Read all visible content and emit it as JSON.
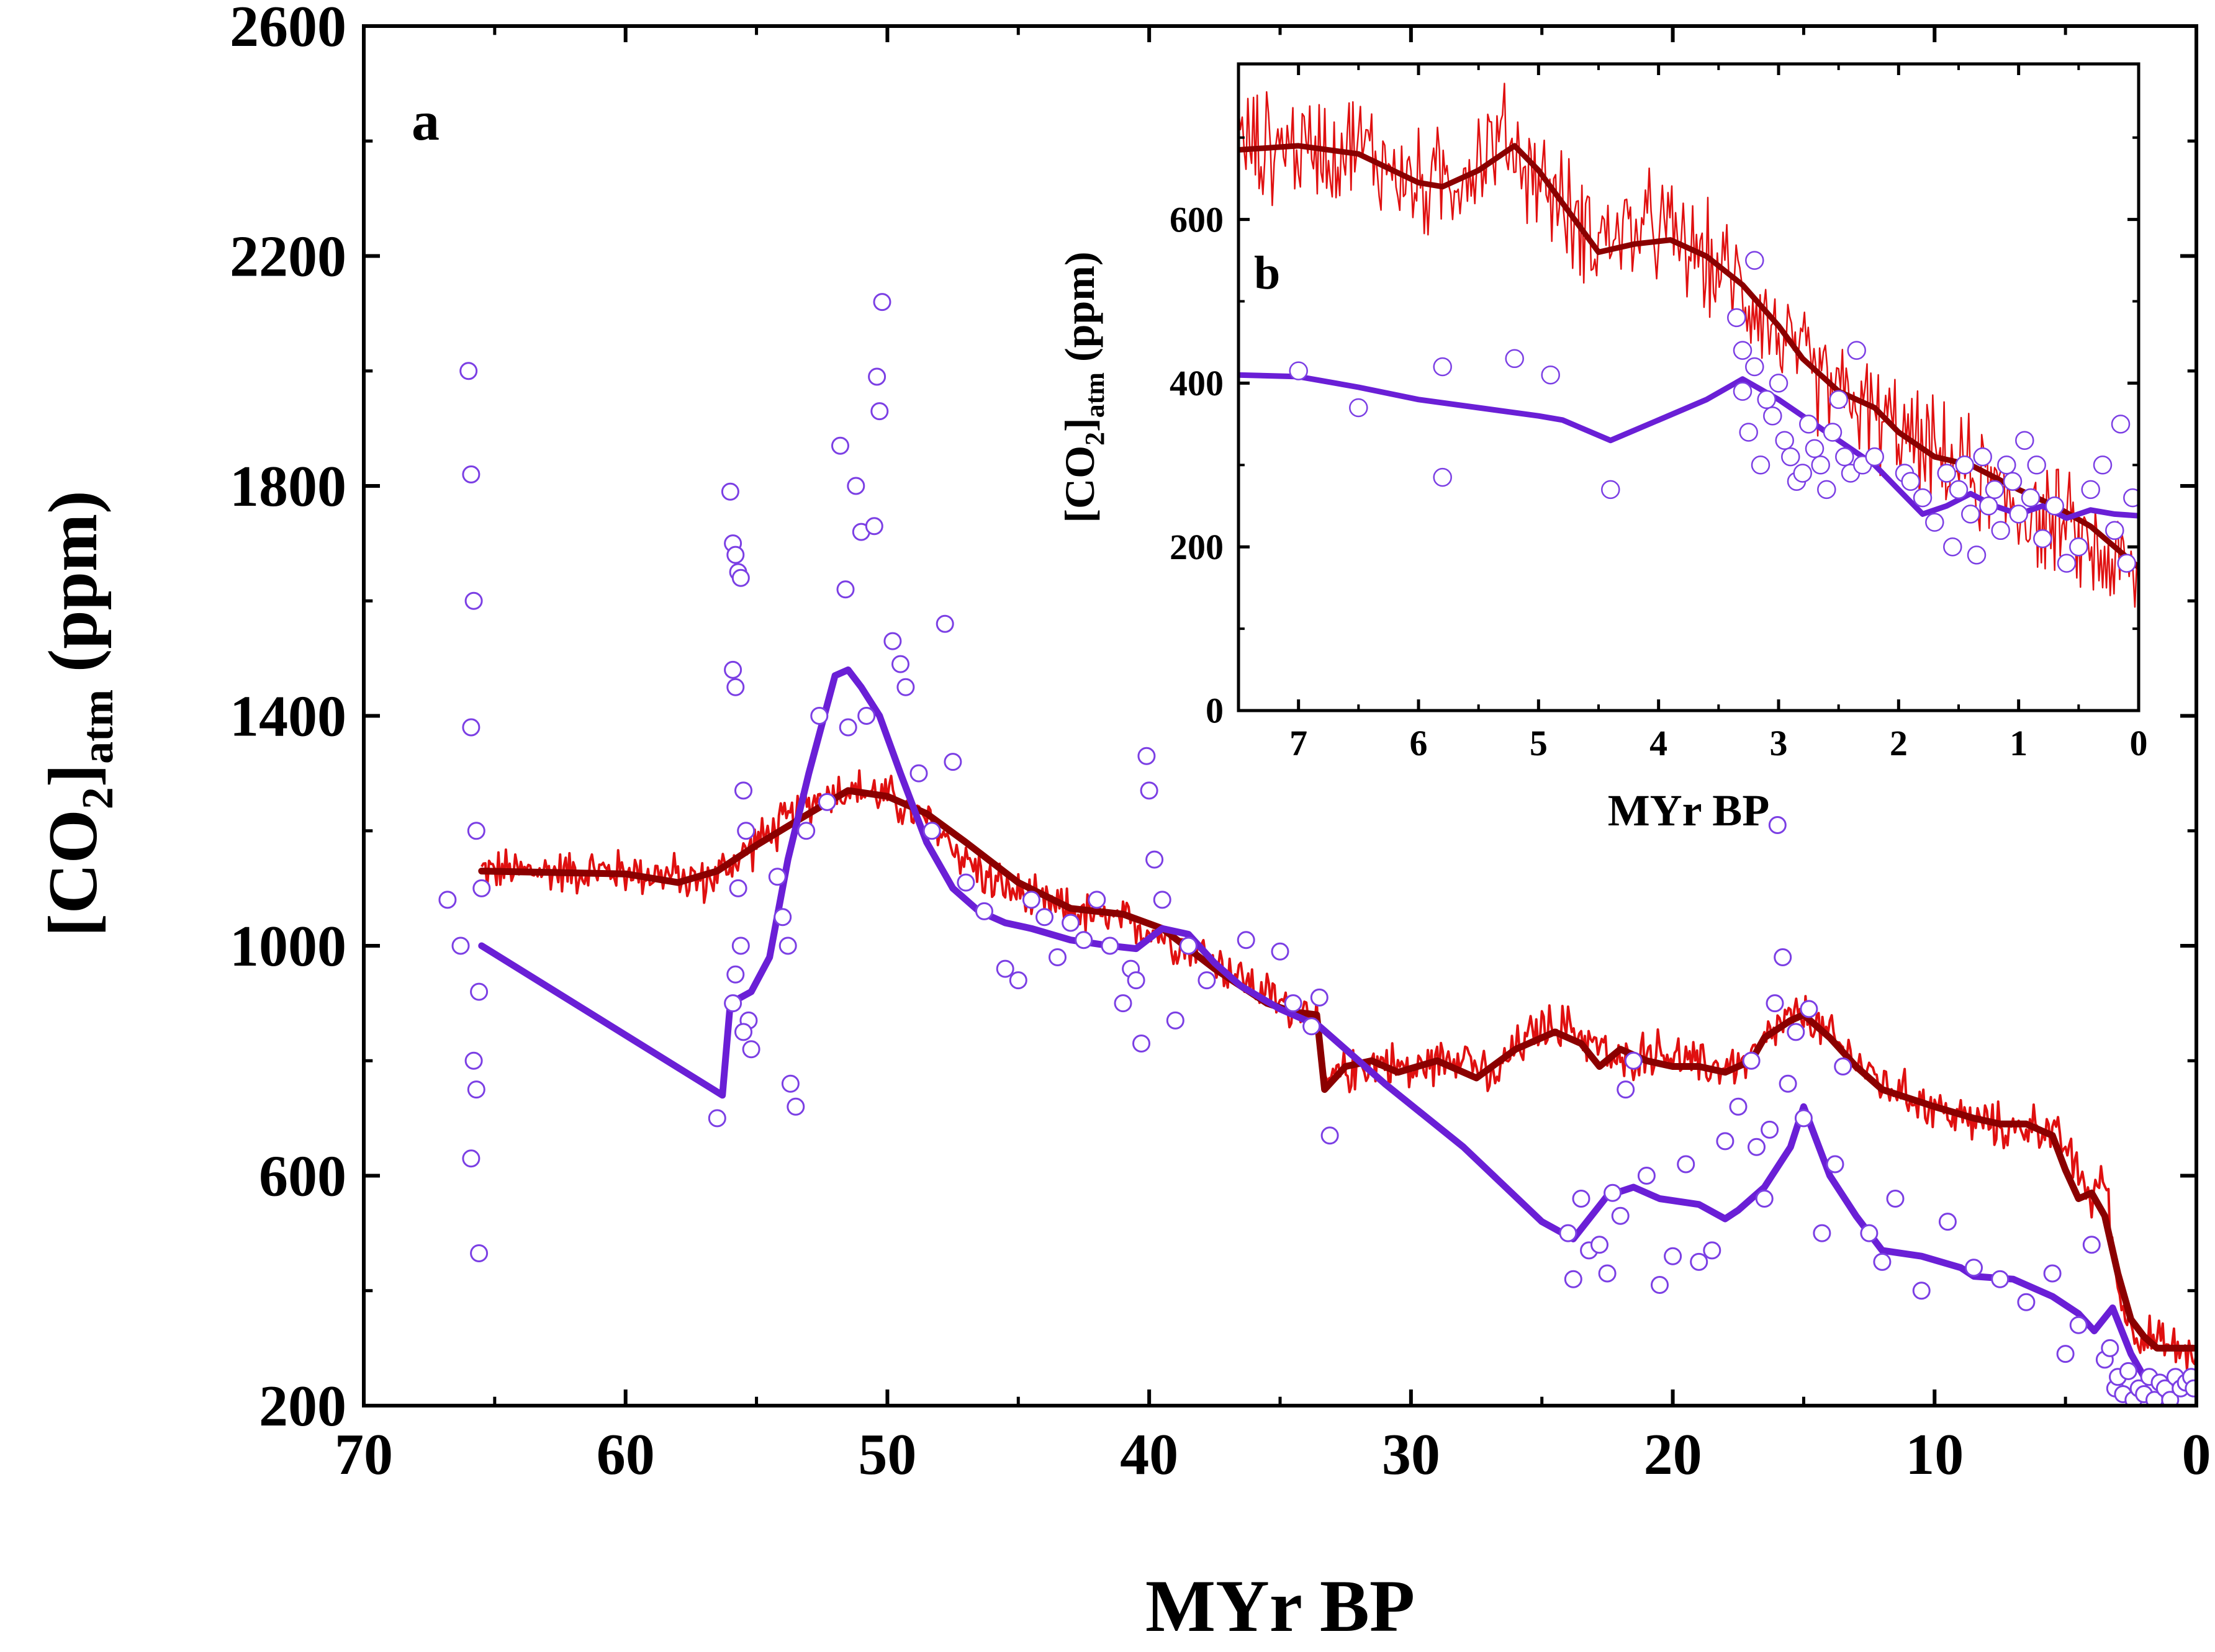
{
  "chart_data": [
    {
      "id": "main",
      "type": "line",
      "panel_label": "a",
      "xlabel": "MYr BP",
      "ylabel_parts": {
        "bracket_open": "[CO",
        "sub1": "2",
        "bracket_close": "]",
        "sub2": "atm",
        "unit": " (ppm)"
      },
      "xlim": [
        70,
        0
      ],
      "ylim": [
        200,
        2600
      ],
      "xticks": [
        70,
        60,
        50,
        40,
        30,
        20,
        10,
        0
      ],
      "yticks": [
        200,
        600,
        1000,
        1400,
        1800,
        2200,
        2600
      ],
      "series": [
        {
          "name": "model purple line",
          "color": "#6a1fd6",
          "style": "line",
          "x": [
            65.5,
            56.3,
            56.0,
            55.2,
            54.5,
            53.8,
            53.0,
            52.0,
            51.5,
            51.0,
            50.3,
            49.5,
            48.5,
            47.5,
            46.5,
            45.5,
            44.5,
            43.0,
            41.5,
            40.5,
            39.5,
            38.5,
            37.5,
            36.5,
            35.0,
            33.5,
            31.0,
            28.0,
            25.0,
            23.8,
            22.5,
            21.5,
            20.5,
            19.0,
            18.0,
            17.5,
            16.5,
            15.5,
            15.0,
            14.5,
            14.0,
            13.0,
            12.0,
            10.5,
            9.0,
            8.5,
            7.0,
            5.5,
            4.5,
            3.9,
            3.2,
            2.5,
            2.0,
            1.5,
            1.0,
            0.5,
            0.1
          ],
          "y": [
            1000,
            740,
            900,
            920,
            980,
            1150,
            1300,
            1470,
            1480,
            1450,
            1400,
            1300,
            1180,
            1100,
            1060,
            1040,
            1030,
            1010,
            1000,
            995,
            1030,
            1020,
            970,
            930,
            890,
            860,
            760,
            650,
            520,
            490,
            565,
            580,
            560,
            550,
            525,
            540,
            580,
            650,
            720,
            660,
            600,
            530,
            470,
            460,
            440,
            425,
            420,
            390,
            360,
            330,
            370,
            290,
            250,
            240,
            245,
            250,
            250
          ]
        },
        {
          "name": "reconstruction red fluctuating",
          "color": "#e01010",
          "style": "noisy-line",
          "x": [
            65.5,
            64.0,
            62.0,
            60.0,
            58.0,
            57.0,
            56.0,
            55.0,
            54.0,
            53.0,
            52.0,
            51.0,
            50.0,
            49.0,
            48.0,
            47.0,
            46.0,
            45.0,
            44.0,
            43.0,
            42.0,
            41.0,
            40.0,
            39.0,
            38.0,
            37.0,
            36.0,
            35.0,
            34.0,
            33.6,
            33.4,
            32.0,
            31.0,
            30.0,
            29.0,
            28.0,
            27.0,
            26.0,
            25.0,
            24.0,
            23.0,
            22.0,
            21.0,
            20.0,
            19.0,
            18.0,
            17.0,
            16.0,
            15.0,
            14.0,
            13.0,
            12.0,
            11.0,
            10.0,
            9.0,
            8.0,
            7.0,
            6.0,
            5.0,
            4.0,
            3.5,
            3.0,
            2.5,
            2.0,
            1.0,
            0.0
          ],
          "y": [
            1130,
            1130,
            1130,
            1130,
            1120,
            1110,
            1140,
            1180,
            1210,
            1250,
            1270,
            1270,
            1260,
            1230,
            1200,
            1150,
            1110,
            1090,
            1070,
            1060,
            1050,
            1040,
            1030,
            1010,
            990,
            960,
            930,
            900,
            890,
            880,
            760,
            790,
            800,
            780,
            800,
            820,
            760,
            820,
            860,
            860,
            830,
            790,
            820,
            810,
            790,
            790,
            800,
            860,
            880,
            840,
            800,
            760,
            740,
            720,
            700,
            690,
            680,
            690,
            650,
            560,
            600,
            400,
            340,
            320,
            300,
            290
          ],
          "noise": 35
        },
        {
          "name": "smoothed dark red",
          "color": "#8b0000",
          "style": "line",
          "x": [
            65.5,
            60.0,
            58.0,
            56.5,
            55.0,
            53.0,
            51.5,
            50.0,
            48.5,
            47.0,
            45.0,
            43.0,
            41.0,
            39.5,
            37.5,
            35.5,
            34.5,
            33.6,
            33.3,
            32.5,
            31.5,
            30.5,
            29.0,
            27.5,
            26.0,
            24.5,
            23.5,
            22.8,
            22.0,
            21.0,
            20.0,
            19.0,
            18.0,
            17.0,
            16.5,
            15.5,
            15.0,
            14.0,
            13.0,
            12.0,
            10.0,
            8.5,
            7.5,
            6.5,
            5.5,
            5.0,
            4.5,
            4.0,
            3.5,
            3.0,
            2.5,
            2.0,
            1.5,
            1.0,
            0.5,
            0.1
          ],
          "y": [
            1130,
            1125,
            1110,
            1130,
            1175,
            1230,
            1270,
            1260,
            1230,
            1180,
            1110,
            1065,
            1055,
            1030,
            960,
            900,
            885,
            880,
            750,
            790,
            800,
            780,
            800,
            770,
            820,
            850,
            830,
            790,
            820,
            800,
            790,
            790,
            780,
            800,
            840,
            870,
            880,
            840,
            790,
            750,
            720,
            700,
            690,
            690,
            670,
            610,
            560,
            570,
            530,
            430,
            350,
            320,
            300,
            300,
            300,
            300
          ]
        },
        {
          "name": "proxy data open circles",
          "color": "#7b3fe4",
          "style": "markers",
          "x": [
            66.8,
            66.3,
            66.0,
            65.9,
            65.8,
            65.9,
            65.7,
            65.6,
            65.8,
            65.9,
            65.5,
            65.7,
            65.6,
            56.5,
            56.0,
            55.9,
            55.8,
            55.7,
            55.6,
            55.9,
            55.8,
            55.5,
            55.4,
            55.7,
            55.6,
            55.8,
            55.9,
            55.3,
            55.5,
            55.2,
            54.2,
            54.0,
            53.8,
            53.7,
            53.5,
            53.1,
            52.6,
            52.3,
            51.8,
            51.6,
            51.5,
            51.2,
            51.0,
            50.8,
            50.5,
            50.4,
            50.3,
            50.2,
            49.8,
            49.5,
            49.3,
            48.8,
            48.3,
            47.8,
            47.5,
            47.0,
            46.3,
            45.5,
            45.0,
            44.5,
            44.0,
            43.5,
            43.0,
            42.5,
            42.0,
            41.5,
            41.0,
            40.7,
            40.5,
            40.3,
            40.1,
            40.0,
            39.8,
            39.5,
            39.0,
            38.5,
            37.8,
            36.3,
            35.0,
            34.5,
            33.8,
            33.5,
            33.1,
            24.0,
            23.8,
            23.5,
            23.2,
            22.8,
            22.5,
            22.3,
            22.0,
            21.8,
            21.5,
            21.0,
            20.5,
            20.0,
            19.5,
            19.0,
            18.5,
            18.0,
            17.5,
            17.0,
            16.8,
            16.5,
            16.3,
            16.1,
            16.0,
            15.8,
            15.6,
            15.3,
            15.0,
            14.8,
            14.3,
            13.8,
            13.5,
            12.5,
            12.0,
            11.5,
            10.5,
            9.5,
            8.5,
            7.5,
            6.5,
            5.5,
            5.0,
            4.5,
            4.0,
            3.5,
            3.3,
            3.1,
            3.0,
            2.8,
            2.6,
            2.4,
            2.2,
            2.0,
            1.8,
            1.6,
            1.4,
            1.2,
            1.0,
            0.8,
            0.6,
            0.4,
            0.2,
            0.1
          ],
          "y": [
            1080,
            1000,
            2000,
            1820,
            1600,
            1380,
            1200,
            920,
            800,
            630,
            1100,
            750,
            465,
            700,
            1790,
            1700,
            1680,
            1650,
            1640,
            1480,
            1450,
            1270,
            1200,
            1100,
            1000,
            950,
            900,
            870,
            850,
            820,
            1120,
            1050,
            1000,
            760,
            720,
            1200,
            1400,
            1250,
            1870,
            1620,
            1380,
            1800,
            1720,
            1400,
            1730,
            1990,
            1930,
            2120,
            1530,
            1490,
            1450,
            1300,
            1200,
            1560,
            1320,
            1110,
            1060,
            960,
            940,
            1080,
            1050,
            980,
            1040,
            1010,
            1080,
            1000,
            900,
            960,
            940,
            830,
            1330,
            1270,
            1150,
            1080,
            870,
            1000,
            940,
            1010,
            990,
            900,
            860,
            910,
            670,
            500,
            420,
            560,
            470,
            480,
            430,
            570,
            530,
            750,
            800,
            600,
            410,
            460,
            620,
            450,
            470,
            660,
            720,
            800,
            650,
            560,
            680,
            900,
            1210,
            980,
            760,
            850,
            700,
            890,
            500,
            620,
            790,
            500,
            450,
            560,
            400,
            520,
            440,
            420,
            380,
            430,
            290,
            340,
            480,
            280,
            300,
            230,
            250,
            220,
            260,
            210,
            230,
            220,
            250,
            210,
            240,
            230,
            210,
            250,
            230,
            240,
            250,
            230
          ]
        }
      ]
    },
    {
      "id": "inset",
      "type": "line",
      "panel_label": "b",
      "xlabel": "MYr BP",
      "ylabel_parts": {
        "bracket_open": "[CO",
        "sub1": "2",
        "bracket_close": "]",
        "sub2": "atm",
        "unit": " (ppm)"
      },
      "xlim": [
        7.5,
        0
      ],
      "ylim": [
        0,
        790
      ],
      "xticks": [
        7,
        6,
        5,
        4,
        3,
        2,
        1,
        0
      ],
      "yticks": [
        0,
        200,
        400,
        600
      ],
      "series": [
        {
          "name": "model purple line",
          "color": "#6a1fd6",
          "style": "line",
          "x": [
            7.5,
            7.0,
            6.5,
            6.0,
            5.5,
            5.0,
            4.8,
            4.4,
            4.0,
            3.6,
            3.3,
            3.0,
            2.7,
            2.5,
            2.2,
            2.0,
            1.8,
            1.6,
            1.4,
            1.2,
            1.0,
            0.8,
            0.6,
            0.4,
            0.2,
            0.0
          ],
          "y": [
            410,
            408,
            395,
            380,
            370,
            360,
            355,
            330,
            355,
            380,
            405,
            380,
            350,
            330,
            300,
            270,
            240,
            250,
            265,
            250,
            240,
            250,
            235,
            245,
            240,
            238
          ]
        },
        {
          "name": "reconstruction red fluctuating",
          "color": "#e01010",
          "style": "noisy-line",
          "x": [
            7.5,
            7.0,
            6.5,
            6.0,
            5.7,
            5.3,
            5.0,
            4.7,
            4.5,
            4.0,
            3.7,
            3.4,
            3.2,
            3.0,
            2.8,
            2.5,
            2.2,
            2.0,
            1.7,
            1.4,
            1.2,
            1.0,
            0.7,
            0.5,
            0.3,
            0.0
          ],
          "y": [
            690,
            690,
            690,
            640,
            650,
            700,
            650,
            600,
            580,
            590,
            560,
            530,
            500,
            460,
            420,
            390,
            360,
            340,
            310,
            290,
            270,
            250,
            230,
            210,
            190,
            160
          ],
          "noise": 60
        },
        {
          "name": "smoothed dark red",
          "color": "#8b0000",
          "style": "line",
          "x": [
            7.5,
            7.0,
            6.5,
            6.0,
            5.8,
            5.5,
            5.2,
            5.0,
            4.7,
            4.5,
            4.2,
            3.9,
            3.6,
            3.3,
            3.0,
            2.8,
            2.5,
            2.2,
            2.0,
            1.7,
            1.4,
            1.2,
            1.0,
            0.7,
            0.4,
            0.2,
            0.0
          ],
          "y": [
            685,
            690,
            680,
            645,
            640,
            660,
            690,
            660,
            600,
            560,
            570,
            575,
            555,
            520,
            470,
            430,
            390,
            370,
            340,
            310,
            300,
            285,
            270,
            250,
            225,
            200,
            175
          ]
        },
        {
          "name": "proxy data open circles",
          "color": "#7b3fe4",
          "style": "markers",
          "x": [
            7.0,
            6.5,
            5.8,
            5.8,
            5.2,
            4.9,
            4.4,
            3.35,
            3.3,
            3.3,
            3.25,
            3.2,
            3.2,
            3.15,
            3.1,
            3.05,
            3.0,
            2.95,
            2.9,
            2.85,
            2.8,
            2.75,
            2.7,
            2.65,
            2.6,
            2.55,
            2.5,
            2.45,
            2.4,
            2.35,
            2.3,
            2.2,
            1.95,
            1.9,
            1.8,
            1.7,
            1.6,
            1.55,
            1.5,
            1.45,
            1.4,
            1.35,
            1.3,
            1.25,
            1.2,
            1.15,
            1.1,
            1.05,
            1.0,
            0.95,
            0.9,
            0.85,
            0.8,
            0.7,
            0.6,
            0.5,
            0.4,
            0.3,
            0.2,
            0.15,
            0.1,
            0.05
          ],
          "y": [
            415,
            370,
            420,
            285,
            430,
            410,
            270,
            480,
            440,
            390,
            340,
            420,
            550,
            300,
            380,
            360,
            400,
            330,
            310,
            280,
            290,
            350,
            320,
            300,
            270,
            340,
            380,
            310,
            290,
            440,
            300,
            310,
            290,
            280,
            260,
            230,
            290,
            200,
            270,
            300,
            240,
            190,
            310,
            250,
            270,
            220,
            300,
            280,
            240,
            330,
            260,
            300,
            210,
            250,
            180,
            200,
            270,
            300,
            220,
            350,
            180,
            260
          ]
        }
      ]
    }
  ]
}
